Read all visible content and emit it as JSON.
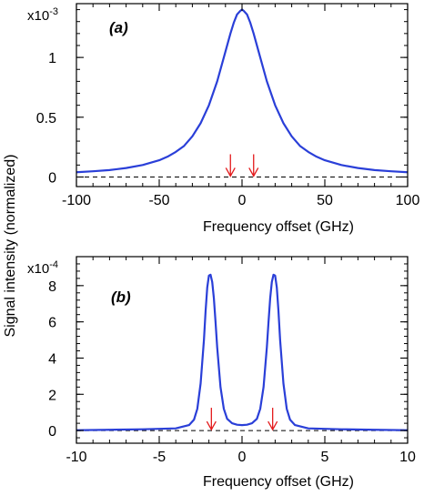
{
  "ylabel": "Signal  intensity  (normalized)",
  "chart_data": [
    {
      "type": "line",
      "panel_label": "(a)",
      "xlabel": "Frequency  offset      (GHz)",
      "y_scale_label": "x10-3",
      "y_scale_mantissa": "x10",
      "y_scale_exponent": "-3",
      "xlim": [
        -100,
        100
      ],
      "ylim": [
        -0.08,
        1.45
      ],
      "x_ticks": [
        -100,
        -50,
        0,
        50,
        100
      ],
      "x_tick_labels": [
        "-100",
        "-50",
        "0",
        "50",
        "100"
      ],
      "y_ticks": [
        0,
        0.5,
        1
      ],
      "y_tick_labels": [
        "0",
        "0.5",
        "1"
      ],
      "grid": false,
      "baseline": 0,
      "series": [
        {
          "color": "#2a3fd8",
          "x": [
            -100,
            -90,
            -80,
            -70,
            -60,
            -50,
            -45,
            -40,
            -35,
            -30,
            -25,
            -20,
            -15,
            -10,
            -7,
            -5,
            -3,
            -1,
            0,
            1,
            3,
            5,
            7,
            10,
            15,
            20,
            25,
            30,
            35,
            40,
            45,
            50,
            60,
            70,
            80,
            90,
            100
          ],
          "y": [
            0.04,
            0.048,
            0.058,
            0.075,
            0.1,
            0.14,
            0.17,
            0.21,
            0.26,
            0.34,
            0.45,
            0.6,
            0.8,
            1.05,
            1.2,
            1.29,
            1.36,
            1.39,
            1.4,
            1.39,
            1.36,
            1.29,
            1.2,
            1.05,
            0.8,
            0.6,
            0.45,
            0.34,
            0.26,
            0.21,
            0.17,
            0.14,
            0.1,
            0.075,
            0.058,
            0.048,
            0.04
          ]
        }
      ],
      "markers": {
        "color": "#e31a1c",
        "x": [
          -7,
          7
        ]
      }
    },
    {
      "type": "line",
      "panel_label": "(b)",
      "xlabel": "Frequency  offset      (GHz)",
      "y_scale_label": "x10-4",
      "y_scale_mantissa": "x10",
      "y_scale_exponent": "-4",
      "xlim": [
        -10,
        10
      ],
      "ylim": [
        -0.7,
        9.6
      ],
      "x_ticks": [
        -10,
        -5,
        0,
        5,
        10
      ],
      "x_tick_labels": [
        "-10",
        "-5",
        "0",
        "5",
        "10"
      ],
      "y_ticks": [
        0,
        2,
        4,
        6,
        8
      ],
      "y_tick_labels": [
        "0",
        "2",
        "4",
        "6",
        "8"
      ],
      "grid": false,
      "baseline": 0,
      "series": [
        {
          "color": "#2a3fd8",
          "x": [
            -10,
            -8,
            -6,
            -4,
            -3.2,
            -2.9,
            -2.7,
            -2.5,
            -2.3,
            -2.2,
            -2.1,
            -2.0,
            -1.9,
            -1.8,
            -1.7,
            -1.6,
            -1.5,
            -1.3,
            -1.1,
            -0.9,
            -0.6,
            -0.3,
            0,
            0.3,
            0.6,
            0.9,
            1.1,
            1.3,
            1.5,
            1.6,
            1.7,
            1.8,
            1.9,
            2.0,
            2.1,
            2.2,
            2.3,
            2.5,
            2.7,
            2.9,
            3.2,
            4,
            6,
            8,
            10
          ],
          "y": [
            0.02,
            0.04,
            0.07,
            0.12,
            0.3,
            0.6,
            1.2,
            2.6,
            5.0,
            6.6,
            7.9,
            8.55,
            8.6,
            8.2,
            7.3,
            6.0,
            4.6,
            2.4,
            1.2,
            0.65,
            0.4,
            0.32,
            0.3,
            0.32,
            0.4,
            0.65,
            1.2,
            2.4,
            4.6,
            6.0,
            7.3,
            8.2,
            8.6,
            8.55,
            7.9,
            6.6,
            5.0,
            2.6,
            1.2,
            0.6,
            0.3,
            0.12,
            0.07,
            0.04,
            0.02
          ]
        }
      ],
      "markers": {
        "color": "#e31a1c",
        "x": [
          -1.85,
          1.85
        ]
      }
    }
  ]
}
